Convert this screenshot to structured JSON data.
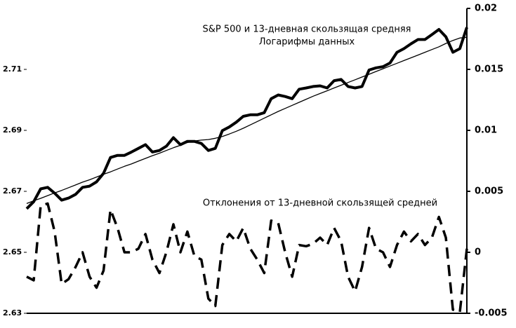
{
  "chart_data": {
    "type": "line",
    "title": "S&P 500 и 13-дневная скользящая средняя",
    "subtitle": "Логарифмы данных",
    "annotation": "Отклонения от 13-дневной скользящей средней",
    "categories": [
      null,
      null,
      null,
      null,
      null,
      null,
      null,
      null,
      null,
      null,
      null,
      null,
      null,
      null,
      null,
      null,
      null,
      null,
      null,
      null,
      null,
      null,
      null,
      null,
      null,
      null,
      null,
      null,
      null,
      null,
      null,
      null,
      null,
      null,
      null,
      null,
      null,
      null,
      null,
      null,
      null,
      null,
      null,
      null,
      null,
      null,
      null,
      null,
      null,
      null,
      null,
      null,
      null,
      null,
      null,
      null,
      null,
      null,
      null,
      null,
      null,
      null,
      null,
      null
    ],
    "ylim": [
      2.63,
      2.73
    ],
    "yticks": [
      2.63,
      2.65,
      2.67,
      2.69,
      2.71
    ],
    "y2lim": [
      -0.005,
      0.02
    ],
    "y2ticks": [
      -0.005,
      0,
      0.005,
      0.01,
      0.015,
      0.02
    ],
    "series": [
      {
        "name": "S&P 500",
        "color": "#000000",
        "style": "thick",
        "values": [
          2.6643,
          2.6666,
          2.6708,
          2.6713,
          2.6694,
          2.6671,
          2.6678,
          2.669,
          2.6713,
          2.6717,
          2.6731,
          2.6759,
          2.6811,
          2.6818,
          2.6818,
          2.6829,
          2.6841,
          2.6853,
          2.6829,
          2.6834,
          2.6848,
          2.6876,
          2.6853,
          2.6864,
          2.6864,
          2.6857,
          2.6834,
          2.6841,
          2.6899,
          2.6911,
          2.6927,
          2.6946,
          2.6951,
          2.6951,
          2.6958,
          2.7004,
          2.7016,
          2.7011,
          2.7004,
          2.7035,
          2.7039,
          2.7044,
          2.7046,
          2.7039,
          2.7063,
          2.7067,
          2.7044,
          2.7039,
          2.7044,
          2.7098,
          2.7105,
          2.7109,
          2.7121,
          2.7156,
          2.7168,
          2.7184,
          2.7198,
          2.7198,
          2.7214,
          2.7231,
          2.7207,
          2.7156,
          2.7168,
          2.7238
        ]
      },
      {
        "name": "13-дневная скользящая средняя",
        "color": "#000000",
        "style": "thin",
        "values": [
          2.666,
          2.6669,
          2.6677,
          2.6686,
          2.6695,
          2.6703,
          2.6712,
          2.6721,
          2.673,
          2.6738,
          2.6747,
          2.6756,
          2.6764,
          2.6773,
          2.6782,
          2.679,
          2.6799,
          2.6808,
          2.6817,
          2.6825,
          2.6834,
          2.6843,
          2.6851,
          2.686,
          2.6865,
          2.6868,
          2.687,
          2.6874,
          2.688,
          2.6888,
          2.6897,
          2.6907,
          2.6918,
          2.6929,
          2.694,
          2.6951,
          2.6962,
          2.6972,
          2.6982,
          2.6992,
          2.7002,
          2.7012,
          2.7021,
          2.703,
          2.7039,
          2.7048,
          2.7057,
          2.7066,
          2.7075,
          2.7084,
          2.7093,
          2.7102,
          2.7111,
          2.712,
          2.7129,
          2.7138,
          2.7147,
          2.7156,
          2.7165,
          2.7174,
          2.7185,
          2.7195,
          2.7203,
          2.7205
        ]
      },
      {
        "name": "Отклонения",
        "color": "#000000",
        "style": "dashed",
        "axis": "y2",
        "values": [
          -0.002,
          -0.0023,
          0.0038,
          0.004,
          0.0017,
          -0.0026,
          -0.0022,
          -0.0012,
          0,
          -0.002,
          -0.0029,
          -0.0015,
          0.0035,
          0.002,
          0,
          0,
          0.0003,
          0.0015,
          -0.0006,
          -0.0017,
          0,
          0.0023,
          0,
          0.0017,
          -0.0003,
          -0.0006,
          -0.0038,
          -0.0044,
          0.0006,
          0.0015,
          0.0009,
          0.002,
          0.0003,
          -0.0006,
          -0.0017,
          0.0026,
          0.0024,
          0,
          -0.002,
          0.0006,
          0.0005,
          0.0007,
          0.0012,
          0.0006,
          0.002,
          0.0009,
          -0.002,
          -0.0032,
          -0.0012,
          0.002,
          0.0003,
          0,
          -0.0012,
          0.0006,
          0.0017,
          0.0009,
          0.0015,
          0.0006,
          0.0012,
          0.0029,
          0.0012,
          -0.0047,
          -0.0049,
          0.0003
        ]
      }
    ]
  }
}
